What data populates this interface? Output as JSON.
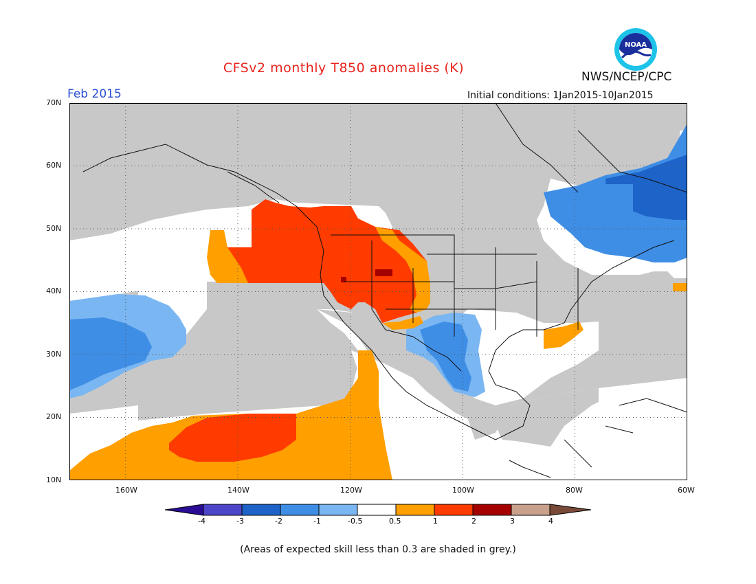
{
  "title": "CFSv2 monthly T850 anomalies (K)",
  "organization": "NWS/NCEP/CPC",
  "logo_text": "NOAA",
  "month": "Feb 2015",
  "initial_conditions": "Initial conditions: 1Jan2015-10Jan2015",
  "footnote": "(Areas of expected skill less than 0.3 are shaded in grey.)",
  "map": {
    "lon_range": [
      -170,
      -60
    ],
    "lat_range": [
      10,
      70
    ],
    "lat_labels": [
      "70N",
      "60N",
      "50N",
      "40N",
      "30N",
      "20N",
      "10N"
    ],
    "lon_labels": [
      "160W",
      "140W",
      "120W",
      "100W",
      "80W",
      "60W"
    ]
  },
  "legend": {
    "tick_labels": [
      "-4",
      "-3",
      "-2",
      "-1",
      "-0.5",
      "0.5",
      "1",
      "2",
      "3",
      "4"
    ],
    "colors": [
      "#2b0d95",
      "#4e46c8",
      "#1e63c8",
      "#3f8ee6",
      "#7ab6f2",
      "#ffffff",
      "#ff9f00",
      "#ff3b00",
      "#a40000",
      "#c8a08c",
      "#7a4a38"
    ]
  },
  "colors": {
    "grey_mask": "#c8c8c8",
    "title": "#e8231c",
    "month": "#2a4fd6"
  }
}
